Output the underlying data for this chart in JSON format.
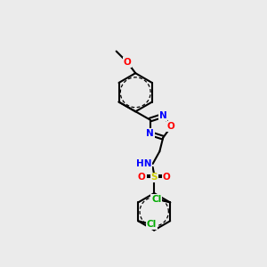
{
  "bg_color": "#ebebeb",
  "bond_color": "#000000",
  "bond_width": 1.5,
  "atom_colors": {
    "N": "#0000ff",
    "O": "#ff0000",
    "S": "#cccc00",
    "Cl": "#00aa00"
  },
  "font_size": 7.5
}
